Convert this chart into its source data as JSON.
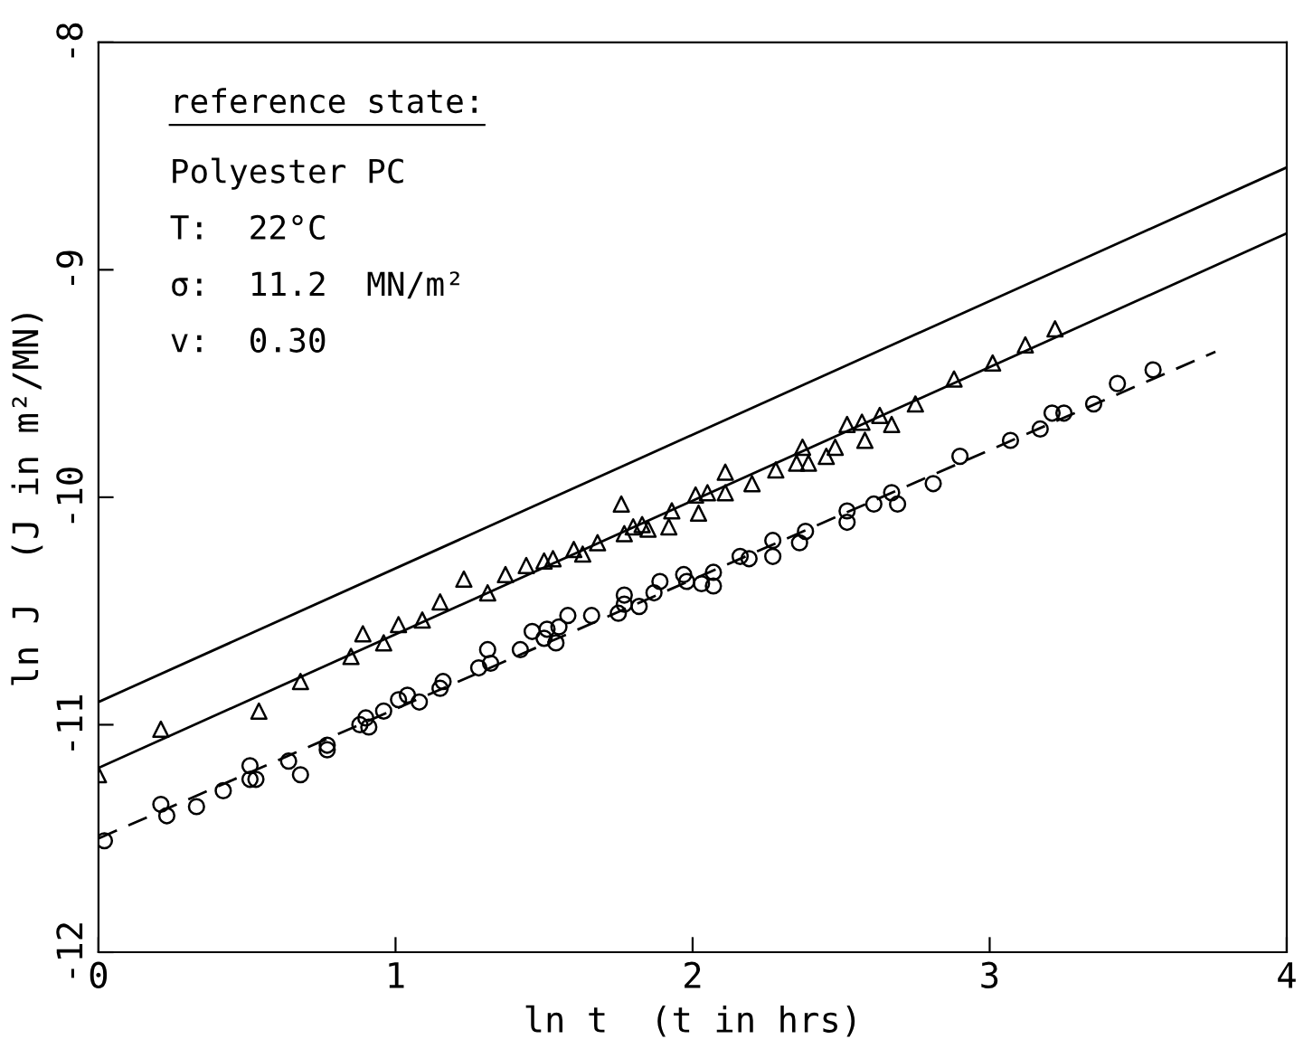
{
  "chart_data": {
    "type": "scatter",
    "xlabel": "ln t  (t in hrs)",
    "ylabel": "ln J  (J in m²/MN)",
    "xlim": [
      0,
      4
    ],
    "ylim": [
      -12,
      -8
    ],
    "xticks": [
      0,
      1,
      2,
      3,
      4
    ],
    "yticks": [
      -12,
      -11,
      -10,
      -9,
      -8
    ],
    "grid": false,
    "legend": false,
    "annotations": [
      "reference state:",
      "Polyester PC",
      "T:  22°C",
      "σ:  11.2  MN/m²",
      "v:  0.30"
    ],
    "series": [
      {
        "type": "line",
        "color": "#000000",
        "marker": "none",
        "line_style": "solid",
        "x": [
          0,
          4
        ],
        "values": [
          -10.9,
          -8.55
        ]
      },
      {
        "type": "line",
        "color": "#000000",
        "marker": "none",
        "line_style": "solid",
        "x": [
          0,
          4
        ],
        "values": [
          -11.19,
          -8.84
        ]
      },
      {
        "type": "line",
        "color": "#000000",
        "marker": "none",
        "line_style": "dashed",
        "x": [
          0,
          3.76
        ],
        "values": [
          -11.5,
          -9.36
        ]
      },
      {
        "color": "#000000",
        "marker": "triangle",
        "x": [
          0,
          0.21,
          0.54,
          0.68,
          0.85,
          0.89,
          0.96,
          1.01,
          1.09,
          1.15,
          1.23,
          1.31,
          1.37,
          1.44,
          1.5,
          1.53,
          1.6,
          1.63,
          1.68,
          1.76,
          1.77,
          1.8,
          1.83,
          1.85,
          1.92,
          1.93,
          2.01,
          2.02,
          2.05,
          2.11,
          2.11,
          2.2,
          2.28,
          2.35,
          2.37,
          2.39,
          2.45,
          2.48,
          2.52,
          2.57,
          2.58,
          2.63,
          2.67,
          2.75,
          2.88,
          3.01,
          3.12,
          3.22
        ],
        "values": [
          -11.22,
          -11.02,
          -10.94,
          -10.81,
          -10.7,
          -10.6,
          -10.64,
          -10.56,
          -10.54,
          -10.46,
          -10.36,
          -10.42,
          -10.34,
          -10.3,
          -10.28,
          -10.27,
          -10.23,
          -10.25,
          -10.2,
          -10.03,
          -10.16,
          -10.13,
          -10.12,
          -10.14,
          -10.13,
          -10.06,
          -9.99,
          -10.07,
          -9.98,
          -9.89,
          -9.98,
          -9.94,
          -9.88,
          -9.85,
          -9.78,
          -9.85,
          -9.82,
          -9.78,
          -9.68,
          -9.67,
          -9.75,
          -9.64,
          -9.68,
          -9.59,
          -9.48,
          -9.41,
          -9.33,
          -9.26
        ]
      },
      {
        "color": "#000000",
        "marker": "circle",
        "x": [
          0.02,
          0.21,
          0.23,
          0.33,
          0.42,
          0.51,
          0.51,
          0.53,
          0.64,
          0.68,
          0.77,
          0.77,
          0.88,
          0.9,
          0.91,
          0.96,
          1.01,
          1.04,
          1.08,
          1.15,
          1.16,
          1.28,
          1.31,
          1.32,
          1.42,
          1.46,
          1.5,
          1.51,
          1.54,
          1.55,
          1.58,
          1.66,
          1.75,
          1.77,
          1.77,
          1.82,
          1.87,
          1.89,
          1.97,
          1.98,
          2.03,
          2.07,
          2.07,
          2.16,
          2.19,
          2.27,
          2.27,
          2.36,
          2.38,
          2.52,
          2.52,
          2.61,
          2.67,
          2.69,
          2.81,
          2.9,
          3.07,
          3.17,
          3.21,
          3.25,
          3.35,
          3.43,
          3.55
        ],
        "values": [
          -11.51,
          -11.35,
          -11.4,
          -11.36,
          -11.29,
          -11.18,
          -11.24,
          -11.24,
          -11.16,
          -11.22,
          -11.09,
          -11.11,
          -11.0,
          -10.97,
          -11.01,
          -10.94,
          -10.89,
          -10.87,
          -10.9,
          -10.84,
          -10.81,
          -10.75,
          -10.67,
          -10.73,
          -10.67,
          -10.59,
          -10.62,
          -10.58,
          -10.64,
          -10.57,
          -10.52,
          -10.52,
          -10.51,
          -10.43,
          -10.47,
          -10.48,
          -10.42,
          -10.37,
          -10.34,
          -10.37,
          -10.38,
          -10.33,
          -10.39,
          -10.26,
          -10.27,
          -10.19,
          -10.26,
          -10.2,
          -10.15,
          -10.06,
          -10.11,
          -10.03,
          -9.98,
          -10.03,
          -9.94,
          -9.82,
          -9.75,
          -9.7,
          -9.63,
          -9.63,
          -9.59,
          -9.5,
          -9.44
        ]
      }
    ]
  }
}
